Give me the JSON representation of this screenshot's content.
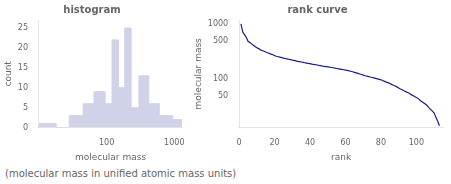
{
  "chart_data": [
    {
      "type": "histogram",
      "title": "histogram",
      "xlabel": "molecular mass",
      "ylabel": "count",
      "bins": [
        10,
        18,
        28,
        45,
        65,
        95,
        120,
        150,
        185,
        230,
        300,
        420,
        600,
        950,
        1300
      ],
      "values": [
        1,
        0,
        3,
        6,
        9,
        6,
        22,
        10,
        25,
        5,
        13,
        6,
        3,
        2
      ],
      "color": "#d0d3e8",
      "log": "x",
      "xlim": [
        10,
        1300
      ],
      "xticks": [
        100,
        1000
      ],
      "ylim": [
        0,
        27
      ],
      "yticks": [
        0,
        5,
        10,
        15,
        20,
        25
      ],
      "grid": false,
      "annotations": [
        "(molecular mass in unified atomic mass units)"
      ]
    },
    {
      "type": "line",
      "title": "rank curve",
      "xlabel": "rank",
      "ylabel": "molecular mass",
      "x": [
        1,
        2,
        3,
        4,
        5,
        6,
        7,
        8,
        9,
        10,
        11,
        12,
        13,
        14,
        15,
        16,
        17,
        18,
        19,
        20,
        21,
        22,
        23,
        24,
        25,
        26,
        27,
        28,
        29,
        30,
        31,
        32,
        33,
        34,
        35,
        36,
        37,
        38,
        39,
        40,
        41,
        42,
        43,
        44,
        45,
        46,
        47,
        48,
        49,
        50,
        51,
        52,
        53,
        54,
        55,
        56,
        57,
        58,
        59,
        60,
        61,
        62,
        63,
        64,
        65,
        66,
        67,
        68,
        69,
        70,
        71,
        72,
        73,
        74,
        75,
        76,
        77,
        78,
        79,
        80,
        81,
        82,
        83,
        84,
        85,
        86,
        87,
        88,
        89,
        90,
        91,
        92,
        93,
        94,
        95,
        96,
        97,
        98,
        99,
        100,
        101,
        102,
        103,
        104,
        105,
        106,
        107,
        108,
        109,
        110,
        111,
        112,
        113
      ],
      "values": [
        1020,
        730,
        650,
        580,
        490,
        465,
        440,
        415,
        395,
        375,
        360,
        342,
        332,
        322,
        312,
        302,
        295,
        285,
        278,
        268,
        261,
        256,
        251,
        246,
        242,
        238,
        234,
        230,
        226,
        222,
        219,
        215,
        211,
        208,
        205,
        202,
        199,
        196,
        193,
        191,
        188,
        186,
        183,
        181,
        178,
        176,
        173,
        171,
        169,
        167,
        165,
        163,
        161,
        158,
        156,
        154,
        152,
        150,
        148,
        146,
        144,
        141,
        139,
        136,
        133,
        130,
        127,
        124,
        121,
        118,
        115,
        113,
        111,
        109,
        107,
        105,
        103,
        101,
        99,
        97,
        94,
        91,
        88,
        86,
        83,
        80,
        77,
        75,
        72,
        69,
        66,
        64,
        61,
        59,
        57,
        55,
        52,
        50,
        48,
        46,
        44,
        41,
        39,
        37,
        35,
        33,
        30,
        28,
        26,
        24,
        20,
        17,
        14
      ],
      "color": "#1a1a8c",
      "log": "y",
      "xlim": [
        0,
        115
      ],
      "xticks": [
        0,
        20,
        40,
        60,
        80,
        100
      ],
      "ylim": [
        13,
        1200
      ],
      "yticks": [
        50,
        100,
        500,
        1000
      ],
      "grid": false
    }
  ]
}
